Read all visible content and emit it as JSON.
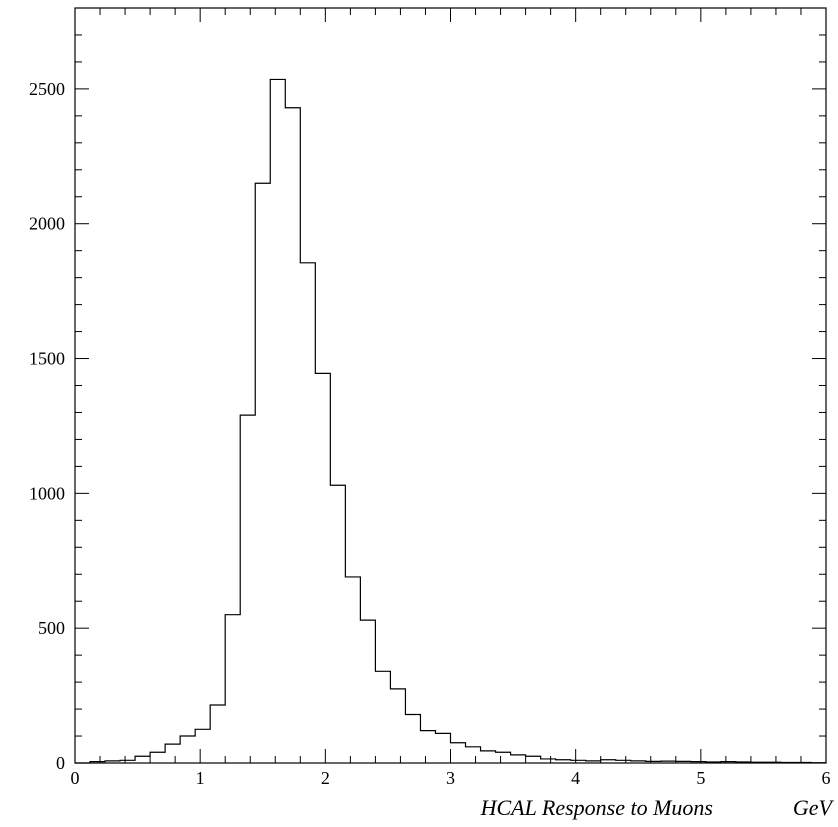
{
  "chart_data": {
    "type": "bar",
    "title": "",
    "xlabel": "HCAL Response to Muons",
    "xunit": "GeV",
    "ylabel": "",
    "xlim": [
      0,
      6
    ],
    "ylim": [
      0,
      2800
    ],
    "x_ticks": [
      "0",
      "1",
      "2",
      "3",
      "4",
      "5",
      "6"
    ],
    "y_ticks": [
      "0",
      "500",
      "1000",
      "1500",
      "2000",
      "2500"
    ],
    "grid": false,
    "bin_width": 0.12,
    "bin_edges_start": 0,
    "values": [
      0,
      5,
      8,
      10,
      25,
      40,
      70,
      100,
      125,
      215,
      550,
      1290,
      2150,
      2535,
      2430,
      1855,
      1445,
      1030,
      690,
      530,
      340,
      275,
      180,
      120,
      110,
      75,
      60,
      45,
      40,
      30,
      25,
      15,
      12,
      10,
      8,
      12,
      10,
      8,
      6,
      7,
      6,
      5,
      4,
      5,
      4,
      3,
      3,
      2,
      2,
      1
    ]
  }
}
